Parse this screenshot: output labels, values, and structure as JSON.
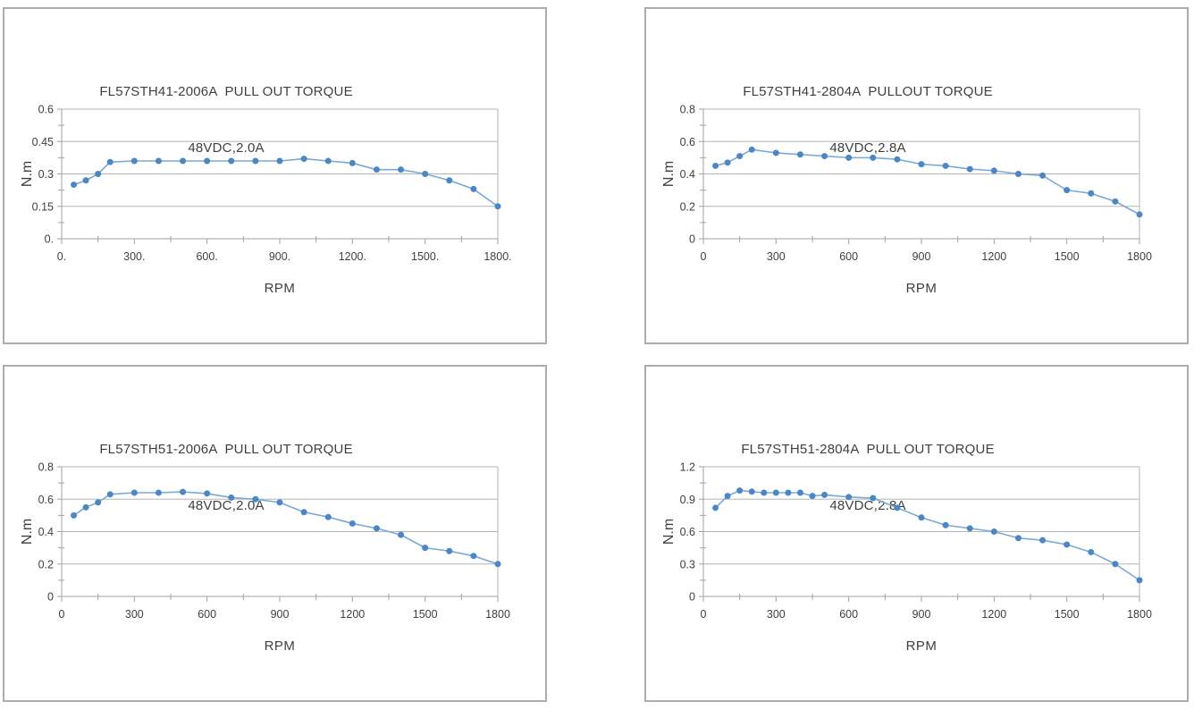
{
  "page": {
    "background": "#ffffff"
  },
  "colors": {
    "panel_border": "#aaacae",
    "gridline": "#b5b5b5",
    "axis_line": "#a0a0a0",
    "tick": "#a0a0a0",
    "text": "#3f3f3f",
    "series_line": "#78aad7",
    "marker_fill": "#4c86c4"
  },
  "chart_data": [
    {
      "id": "fl57sth41-2006a",
      "type": "line",
      "title_line1": "FL57STH41-2006A  PULL OUT TORQUE",
      "title_line2": "48VDC,2.0A",
      "xlabel": "RPM",
      "ylabel": "N.m",
      "xlim": [
        0,
        1800
      ],
      "ylim": [
        0,
        0.6
      ],
      "x_minor_step": 150,
      "y_minor_step": 0.075,
      "x_ticks": [
        {
          "v": 0,
          "label": "0."
        },
        {
          "v": 300,
          "label": "300."
        },
        {
          "v": 600,
          "label": "600."
        },
        {
          "v": 900,
          "label": "900."
        },
        {
          "v": 1200,
          "label": "1200."
        },
        {
          "v": 1500,
          "label": "1500."
        },
        {
          "v": 1800,
          "label": "1800."
        }
      ],
      "y_ticks": [
        {
          "v": 0,
          "label": "0."
        },
        {
          "v": 0.15,
          "label": "0.15"
        },
        {
          "v": 0.3,
          "label": "0.3"
        },
        {
          "v": 0.45,
          "label": "0.45"
        },
        {
          "v": 0.6,
          "label": "0.6"
        }
      ],
      "x": [
        50,
        100,
        150,
        200,
        300,
        400,
        500,
        600,
        700,
        800,
        900,
        1000,
        1100,
        1200,
        1300,
        1400,
        1500,
        1600,
        1700,
        1800
      ],
      "y": [
        0.25,
        0.27,
        0.3,
        0.355,
        0.36,
        0.36,
        0.36,
        0.36,
        0.36,
        0.36,
        0.36,
        0.37,
        0.36,
        0.35,
        0.32,
        0.32,
        0.3,
        0.27,
        0.23,
        0.15
      ]
    },
    {
      "id": "fl57sth41-2804a",
      "type": "line",
      "title_line1": "FL57STH41-2804A  PULLOUT TORQUE",
      "title_line2": "48VDC,2.8A",
      "xlabel": "RPM",
      "ylabel": "N.m",
      "xlim": [
        0,
        1800
      ],
      "ylim": [
        0,
        0.8
      ],
      "x_minor_step": 150,
      "y_minor_step": 0.1,
      "x_ticks": [
        {
          "v": 0,
          "label": "0"
        },
        {
          "v": 300,
          "label": "300"
        },
        {
          "v": 600,
          "label": "600"
        },
        {
          "v": 900,
          "label": "900"
        },
        {
          "v": 1200,
          "label": "1200"
        },
        {
          "v": 1500,
          "label": "1500"
        },
        {
          "v": 1800,
          "label": "1800"
        }
      ],
      "y_ticks": [
        {
          "v": 0,
          "label": "0"
        },
        {
          "v": 0.2,
          "label": "0.2"
        },
        {
          "v": 0.4,
          "label": "0.4"
        },
        {
          "v": 0.6,
          "label": "0.6"
        },
        {
          "v": 0.8,
          "label": "0.8"
        }
      ],
      "x": [
        50,
        100,
        150,
        200,
        300,
        400,
        500,
        600,
        700,
        800,
        900,
        1000,
        1100,
        1200,
        1300,
        1400,
        1500,
        1600,
        1700,
        1800
      ],
      "y": [
        0.45,
        0.47,
        0.51,
        0.55,
        0.53,
        0.52,
        0.51,
        0.5,
        0.5,
        0.49,
        0.46,
        0.45,
        0.43,
        0.42,
        0.4,
        0.39,
        0.3,
        0.28,
        0.23,
        0.15
      ]
    },
    {
      "id": "fl57sth51-2006a",
      "type": "line",
      "title_line1": "FL57STH51-2006A  PULL OUT TORQUE",
      "title_line2": "48VDC,2.0A",
      "xlabel": "RPM",
      "ylabel": "N.m",
      "xlim": [
        0,
        1800
      ],
      "ylim": [
        0,
        0.8
      ],
      "x_minor_step": 150,
      "y_minor_step": 0.1,
      "x_ticks": [
        {
          "v": 0,
          "label": "0"
        },
        {
          "v": 300,
          "label": "300"
        },
        {
          "v": 600,
          "label": "600"
        },
        {
          "v": 900,
          "label": "900"
        },
        {
          "v": 1200,
          "label": "1200"
        },
        {
          "v": 1500,
          "label": "1500"
        },
        {
          "v": 1800,
          "label": "1800"
        }
      ],
      "y_ticks": [
        {
          "v": 0,
          "label": "0"
        },
        {
          "v": 0.2,
          "label": "0.2"
        },
        {
          "v": 0.4,
          "label": "0.4"
        },
        {
          "v": 0.6,
          "label": "0.6"
        },
        {
          "v": 0.8,
          "label": "0.8"
        }
      ],
      "x": [
        50,
        100,
        150,
        200,
        300,
        400,
        500,
        600,
        700,
        800,
        900,
        1000,
        1100,
        1200,
        1300,
        1400,
        1500,
        1600,
        1700,
        1800
      ],
      "y": [
        0.5,
        0.55,
        0.58,
        0.63,
        0.64,
        0.64,
        0.645,
        0.635,
        0.61,
        0.6,
        0.58,
        0.52,
        0.49,
        0.45,
        0.42,
        0.38,
        0.3,
        0.28,
        0.25,
        0.2
      ]
    },
    {
      "id": "fl57sth51-2804a",
      "type": "line",
      "title_line1": "FL57STH51-2804A  PULL OUT TORQUE",
      "title_line2": "48VDC,2.8A",
      "xlabel": "RPM",
      "ylabel": "N.m",
      "xlim": [
        0,
        1800
      ],
      "ylim": [
        0,
        1.2
      ],
      "x_minor_step": 150,
      "y_minor_step": 0.15,
      "x_ticks": [
        {
          "v": 0,
          "label": "0"
        },
        {
          "v": 300,
          "label": "300"
        },
        {
          "v": 600,
          "label": "600"
        },
        {
          "v": 900,
          "label": "900"
        },
        {
          "v": 1200,
          "label": "1200"
        },
        {
          "v": 1500,
          "label": "1500"
        },
        {
          "v": 1800,
          "label": "1800"
        }
      ],
      "y_ticks": [
        {
          "v": 0,
          "label": "0"
        },
        {
          "v": 0.3,
          "label": "0.3"
        },
        {
          "v": 0.6,
          "label": "0.6"
        },
        {
          "v": 0.9,
          "label": "0.9"
        },
        {
          "v": 1.2,
          "label": "1.2"
        }
      ],
      "x": [
        50,
        100,
        150,
        200,
        250,
        300,
        350,
        400,
        450,
        500,
        600,
        700,
        800,
        900,
        1000,
        1100,
        1200,
        1300,
        1400,
        1500,
        1600,
        1700,
        1800
      ],
      "y": [
        0.82,
        0.93,
        0.98,
        0.97,
        0.96,
        0.96,
        0.96,
        0.96,
        0.93,
        0.94,
        0.92,
        0.91,
        0.82,
        0.73,
        0.66,
        0.63,
        0.6,
        0.54,
        0.52,
        0.48,
        0.41,
        0.3,
        0.15
      ]
    }
  ]
}
